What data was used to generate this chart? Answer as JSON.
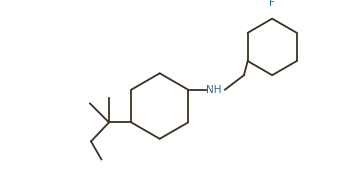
{
  "line_color": "#3d3020",
  "background_color": "#ffffff",
  "text_color_NH": "#2e6b8a",
  "text_color_F": "#2e6b8a",
  "line_width": 1.3,
  "figsize": [
    3.47,
    1.75
  ],
  "dpi": 100
}
